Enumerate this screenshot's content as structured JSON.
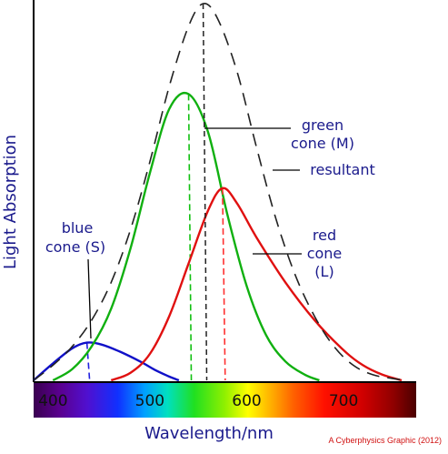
{
  "chart_data": {
    "type": "line",
    "ylabel": "Light Absorption",
    "xlabel": "Wavelength/nm",
    "xlim": [
      380,
      775
    ],
    "ylim": [
      0,
      1.0
    ],
    "x_ticks": [
      "400",
      "500",
      "600",
      "700"
    ],
    "series": [
      {
        "name": "blue cone (S)",
        "color": "#1010c8",
        "peak_nm": 435,
        "peak": 0.1,
        "dash": "#2020e0",
        "x": [
          380,
          400,
          420,
          435,
          450,
          470,
          490,
          505,
          520,
          530
        ],
        "y": [
          0.0,
          0.045,
          0.085,
          0.1,
          0.095,
          0.075,
          0.05,
          0.028,
          0.01,
          0.0
        ]
      },
      {
        "name": "green cone (M)",
        "color": "#10b010",
        "peak_nm": 540,
        "peak": 0.76,
        "dash": "#10c010",
        "x": [
          400,
          420,
          440,
          460,
          480,
          500,
          520,
          540,
          560,
          580,
          600,
          620,
          640,
          660,
          675
        ],
        "y": [
          0.0,
          0.03,
          0.09,
          0.19,
          0.35,
          0.55,
          0.72,
          0.76,
          0.66,
          0.44,
          0.25,
          0.12,
          0.05,
          0.015,
          0.0
        ]
      },
      {
        "name": "red cone (L)",
        "color": "#e01010",
        "peak_nm": 575,
        "peak": 0.51,
        "dash": "#ff3030",
        "x": [
          460,
          480,
          500,
          520,
          540,
          560,
          575,
          590,
          610,
          640,
          670,
          700,
          720,
          740,
          760
        ],
        "y": [
          0.0,
          0.02,
          0.07,
          0.17,
          0.31,
          0.45,
          0.51,
          0.47,
          0.38,
          0.26,
          0.16,
          0.08,
          0.04,
          0.015,
          0.0
        ]
      },
      {
        "name": "resultant",
        "color": "#222222",
        "peak_nm": 555,
        "peak": 1.0,
        "dash": "#222222",
        "x": [
          380,
          400,
          420,
          440,
          460,
          480,
          500,
          520,
          540,
          555,
          570,
          590,
          610,
          630,
          650,
          670,
          690,
          710,
          730,
          750,
          765
        ],
        "y": [
          0.0,
          0.04,
          0.09,
          0.16,
          0.26,
          0.4,
          0.58,
          0.78,
          0.94,
          1.0,
          0.96,
          0.82,
          0.62,
          0.43,
          0.28,
          0.17,
          0.09,
          0.04,
          0.015,
          0.005,
          0.0
        ]
      }
    ],
    "annotations": {
      "blue": [
        "blue",
        "cone (S)"
      ],
      "green": [
        "green",
        "cone (M)"
      ],
      "red": [
        "red",
        "cone",
        "(L)"
      ],
      "resultant": [
        "resultant"
      ]
    },
    "credit": "A Cyberphysics Graphic (2012)"
  }
}
